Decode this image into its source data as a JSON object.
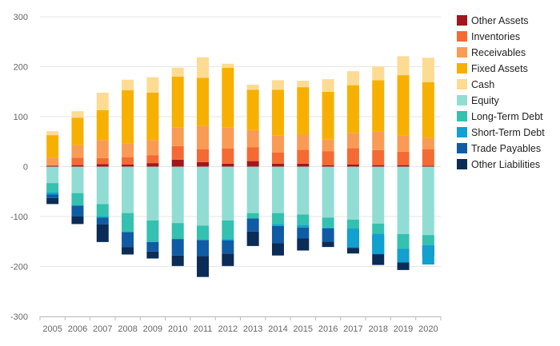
{
  "chart_data": {
    "type": "bar",
    "stacked": true,
    "grid": "horizontal",
    "legend_position": "right",
    "ylim": [
      -300,
      300
    ],
    "yticks": [
      -300,
      -200,
      -100,
      0,
      100,
      200,
      300
    ],
    "categories": [
      "2005",
      "2006",
      "2007",
      "2008",
      "2009",
      "2010",
      "2011",
      "2012",
      "2013",
      "2014",
      "2015",
      "2016",
      "2017",
      "2018",
      "2019",
      "2020"
    ],
    "series": [
      {
        "name": "Other Assets",
        "color": "#a3161e",
        "side": "positive",
        "values": [
          2,
          3,
          5,
          4,
          7,
          14,
          9,
          6,
          11,
          6,
          6,
          3,
          4,
          3,
          3,
          2
        ]
      },
      {
        "name": "Inventories",
        "color": "#f56a33",
        "side": "positive",
        "values": [
          0,
          15,
          12,
          15,
          16,
          27,
          26,
          30,
          28,
          22,
          28,
          28,
          33,
          30,
          27,
          33
        ]
      },
      {
        "name": "Receivables",
        "color": "#f99b55",
        "side": "positive",
        "values": [
          16,
          25,
          36,
          28,
          30,
          37,
          46,
          42,
          34,
          34,
          30,
          23,
          30,
          38,
          33,
          22
        ]
      },
      {
        "name": "Fixed Assets",
        "color": "#f7b000",
        "side": "positive",
        "values": [
          45,
          55,
          60,
          106,
          95,
          102,
          97,
          120,
          81,
          92,
          95,
          96,
          96,
          102,
          120,
          112
        ]
      },
      {
        "name": "Cash",
        "color": "#fddb92",
        "side": "positive",
        "values": [
          8,
          13,
          35,
          21,
          31,
          18,
          41,
          8,
          10,
          19,
          13,
          25,
          28,
          28,
          38,
          49
        ]
      },
      {
        "name": "Equity",
        "color": "#92ddd3",
        "side": "negative",
        "values": [
          33,
          53,
          75,
          93,
          108,
          113,
          118,
          108,
          93,
          93,
          96,
          102,
          106,
          114,
          135,
          137
        ]
      },
      {
        "name": "Long-Term Debt",
        "color": "#34c1af",
        "side": "negative",
        "values": [
          19,
          25,
          25,
          38,
          43,
          32,
          29,
          37,
          11,
          23,
          21,
          20,
          18,
          20,
          30,
          20
        ]
      },
      {
        "name": "Short-Term Debt",
        "color": "#11a0cf",
        "side": "negative",
        "values": [
          4,
          0,
          2,
          0,
          0,
          0,
          0,
          3,
          0,
          3,
          5,
          2,
          3,
          4,
          0,
          1
        ]
      },
      {
        "name": "Trade Payables",
        "color": "#0f5ca4",
        "side": "negative",
        "values": [
          7,
          22,
          14,
          30,
          19,
          33,
          32,
          26,
          26,
          34,
          22,
          26,
          36,
          38,
          27,
          3
        ]
      },
      {
        "name": "Other Liabilities",
        "color": "#0a2c56",
        "side": "negative",
        "values": [
          12,
          15,
          35,
          15,
          14,
          21,
          42,
          25,
          29,
          25,
          24,
          11,
          11,
          21,
          15,
          18
        ]
      }
    ],
    "overlays": [
      {
        "category": "2017",
        "series": "Short-Term Debt",
        "value": 35,
        "start": 127
      },
      {
        "category": "2018",
        "series": "Short-Term Debt",
        "value": 37,
        "start": 138
      },
      {
        "category": "2019",
        "series": "Short-Term Debt",
        "value": 27,
        "start": 165
      },
      {
        "category": "2020",
        "series": "Short-Term Debt",
        "value": 38,
        "start": 158
      }
    ]
  }
}
